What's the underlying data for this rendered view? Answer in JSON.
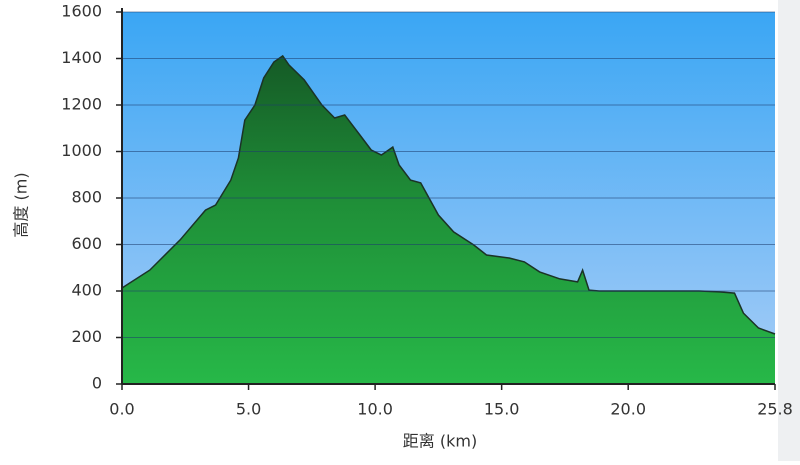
{
  "chart_data": {
    "type": "area",
    "x_label": "距离 (km)",
    "y_label": "高度 (m)",
    "x": [
      0,
      1.1,
      2.3,
      3.3,
      3.7,
      4.3,
      4.6,
      4.85,
      5.25,
      5.6,
      6.0,
      6.35,
      6.6,
      7.2,
      7.9,
      8.4,
      8.8,
      9.4,
      9.85,
      10.25,
      10.7,
      10.95,
      11.4,
      11.8,
      12.5,
      13.1,
      13.9,
      14.4,
      15.3,
      15.9,
      16.5,
      17.3,
      18.0,
      18.2,
      18.45,
      18.85,
      22.8,
      23.6,
      24.2,
      24.55,
      25.15,
      25.8
    ],
    "values": [
      413,
      490,
      620,
      748,
      770,
      877,
      972,
      1135,
      1200,
      1316,
      1385,
      1411,
      1372,
      1308,
      1200,
      1144,
      1157,
      1071,
      1006,
      985,
      1019,
      942,
      877,
      865,
      727,
      654,
      598,
      555,
      542,
      525,
      482,
      452,
      439,
      490,
      404,
      400,
      400,
      396,
      391,
      305,
      241,
      215
    ],
    "color": "#23a43f",
    "xlim": [
      0,
      25.8
    ],
    "xticks": [
      {
        "value": 0,
        "label": "0.0"
      },
      {
        "value": 5,
        "label": "5.0"
      },
      {
        "value": 10,
        "label": "10.0"
      },
      {
        "value": 15,
        "label": "15.0"
      },
      {
        "value": 20,
        "label": "20.0"
      },
      25.8
    ],
    "ylim": [
      0,
      1600
    ],
    "yticks": [
      0,
      200,
      400,
      600,
      800,
      1000,
      1200,
      1400,
      1600
    ],
    "grid": true
  }
}
